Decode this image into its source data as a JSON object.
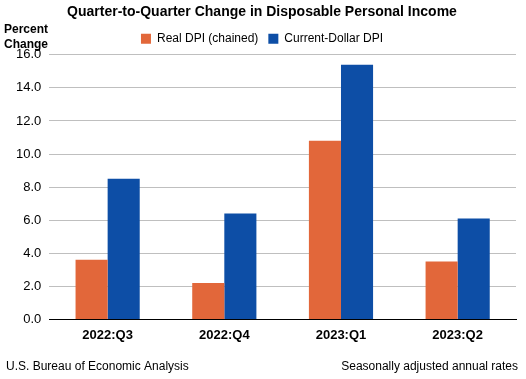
{
  "chart_data": {
    "type": "bar",
    "title": "Quarter-to-Quarter Change in Disposable Personal Income",
    "y_label": [
      "Percent",
      "Change"
    ],
    "categories": [
      "2022:Q3",
      "2022:Q4",
      "2023:Q1",
      "2023:Q2"
    ],
    "series": [
      {
        "name": "Real DPI (chained)",
        "color": "#e2673a",
        "values": [
          3.6,
          2.2,
          10.8,
          3.5
        ]
      },
      {
        "name": "Current-Dollar DPI",
        "color": "#0d4ea6",
        "values": [
          8.5,
          6.4,
          15.4,
          6.1
        ]
      }
    ],
    "ylim": [
      0,
      16
    ],
    "yticks": [
      {
        "value": 0,
        "label": "0.0"
      },
      {
        "value": 2,
        "label": "2.0"
      },
      {
        "value": 4,
        "label": "4.0"
      },
      {
        "value": 6,
        "label": "6.0"
      },
      {
        "value": 8,
        "label": "8.0"
      },
      {
        "value": 10,
        "label": "10.0"
      },
      {
        "value": 12,
        "label": "12.0"
      },
      {
        "value": 14,
        "label": "14.0"
      },
      {
        "value": 16,
        "label": "16.0"
      }
    ],
    "grid": true,
    "legend": "top",
    "source": "U.S. Bureau of Economic Analysis",
    "note": "Seasonally adjusted annual rates"
  }
}
